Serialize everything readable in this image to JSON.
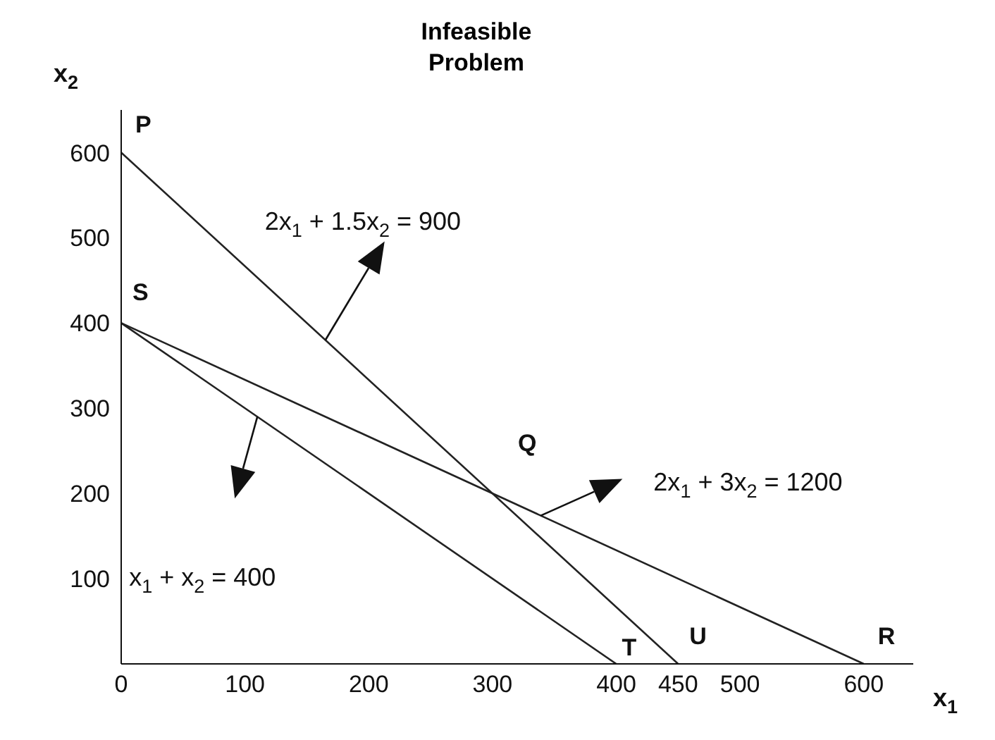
{
  "chart_data": {
    "type": "line",
    "title": "Infeasible Problem",
    "xlabel": "x$_{1}$",
    "ylabel": "x$_{2}$",
    "xlim": [
      0,
      640
    ],
    "ylim": [
      0,
      650
    ],
    "xticks": [
      0,
      100,
      200,
      300,
      400,
      450,
      500,
      600
    ],
    "yticks": [
      100,
      200,
      300,
      400,
      500,
      600
    ],
    "marker": "none",
    "line_style": "solid",
    "series": [
      {
        "color": "#222222",
        "x": [
          0,
          450
        ],
        "values": [
          600,
          0
        ]
      },
      {
        "color": "#222222",
        "x": [
          0,
          400
        ],
        "values": [
          400,
          0
        ]
      },
      {
        "color": "#222222",
        "x": [
          0,
          600
        ],
        "values": [
          400,
          0
        ]
      }
    ],
    "annotations": [
      {
        "text": "P",
        "x": 0,
        "y": 600
      },
      {
        "text": "S",
        "x": 0,
        "y": 400
      },
      {
        "text": "Q",
        "x": 300,
        "y": 200
      },
      {
        "text": "T",
        "x": 400,
        "y": 0
      },
      {
        "text": "U",
        "x": 450,
        "y": 0
      },
      {
        "text": "R",
        "x": 600,
        "y": 0
      },
      {
        "text": "2x$_{1}$ + 1.5x$_{2}$ = 900",
        "x": 165,
        "y": 380
      },
      "2x$_{1}$ + 3x$_{2}$ = 1200",
      "x$_{1}$ + x$_{2}$ = 400"
    ]
  }
}
